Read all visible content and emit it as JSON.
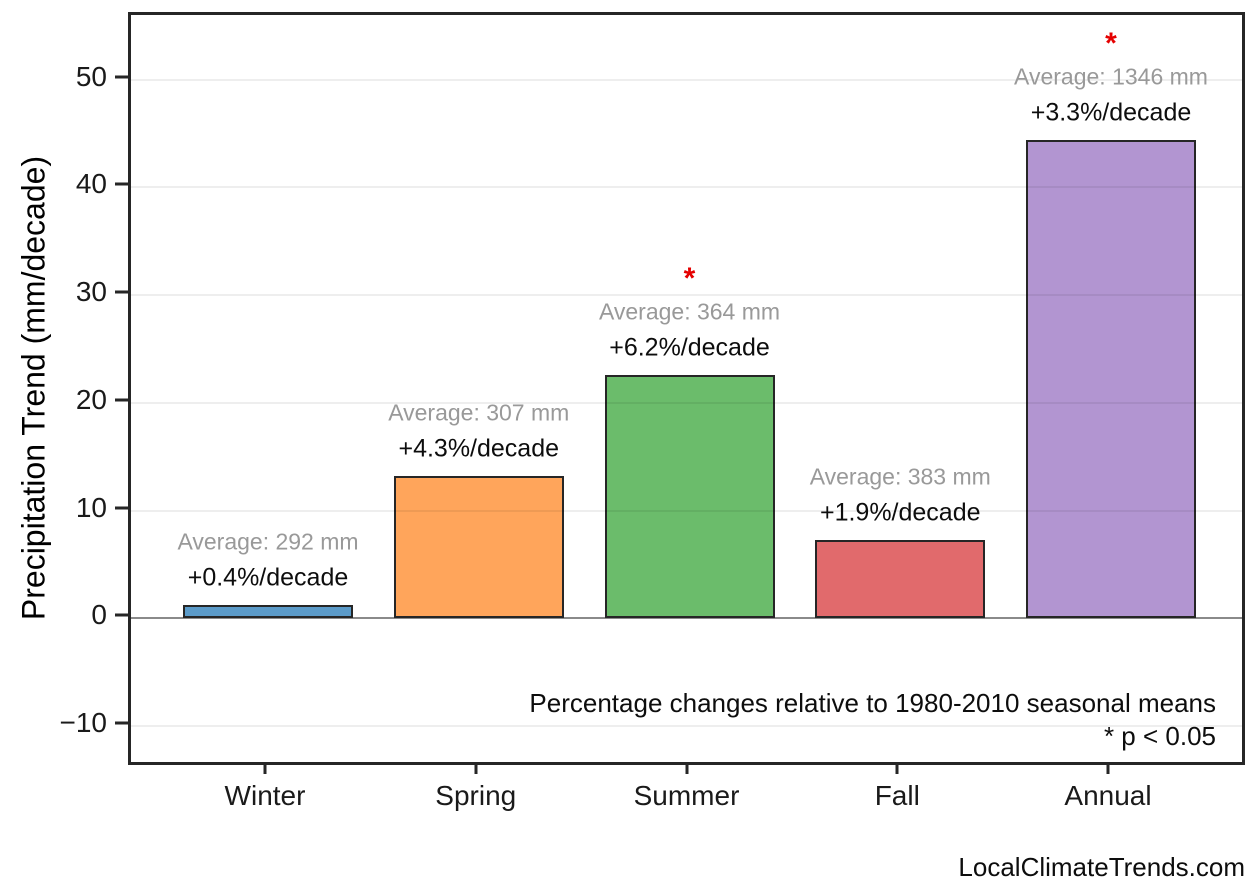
{
  "chart_data": {
    "type": "bar",
    "title": "",
    "categories": [
      "Winter",
      "Spring",
      "Summer",
      "Fall",
      "Annual"
    ],
    "values": [
      1.2,
      13.2,
      22.6,
      7.3,
      44.4
    ],
    "bar_colors": [
      "#5B9BC9",
      "#FFA55B",
      "#6BBC6B",
      "#E16A6C",
      "#B295D1"
    ],
    "bar_edge_color": "#262626",
    "annotations": [
      {
        "average": "Average: 292 mm",
        "percent": "+0.4%/decade",
        "significant": false
      },
      {
        "average": "Average: 307 mm",
        "percent": "+4.3%/decade",
        "significant": false
      },
      {
        "average": "Average: 364 mm",
        "percent": "+6.2%/decade",
        "significant": true
      },
      {
        "average": "Average: 383 mm",
        "percent": "+1.9%/decade",
        "significant": false
      },
      {
        "average": "Average: 1346 mm",
        "percent": "+3.3%/decade",
        "significant": true
      }
    ],
    "significance_marker": "*",
    "significance_color": "#E50000",
    "xlabel": "",
    "ylabel": "Precipitation Trend (mm/decade)",
    "yticks": [
      50,
      40,
      30,
      20,
      10,
      0,
      -10
    ],
    "ylim": [
      -13.9,
      56.0
    ],
    "grid": "horizontal",
    "zero_line_color": "#8a8a8a",
    "footnote_line1": "Percentage changes relative to 1980-2010 seasonal means",
    "footnote_line2": "* p < 0.05",
    "watermark": "LocalClimateTrends.com"
  }
}
